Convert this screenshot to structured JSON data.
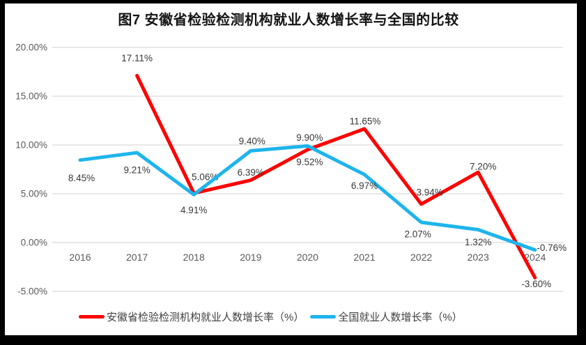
{
  "chart": {
    "title": "图7 安徽省检验检测机构就业人数增长率与全国的比较"
  },
  "chart_data": {
    "type": "line",
    "title": "图7 安徽省检验检测机构就业人数增长率与全国的比较",
    "categories": [
      "2016",
      "2017",
      "2018",
      "2019",
      "2020",
      "2021",
      "2022",
      "2023",
      "2024"
    ],
    "y_axis": {
      "min": -5,
      "max": 20,
      "step": 5,
      "ticks": [
        {
          "value": 20,
          "label": "20.00%"
        },
        {
          "value": 15,
          "label": "15.00%"
        },
        {
          "value": 10,
          "label": "10.00%"
        },
        {
          "value": 5,
          "label": "5.00%"
        },
        {
          "value": 0,
          "label": "0.00%"
        },
        {
          "value": -5,
          "label": "-5.00%"
        }
      ]
    },
    "grid": true,
    "legend_position": "bottom",
    "series": [
      {
        "name": "安徽省检验检测机构就业人数增长率（%）",
        "color": "#FF0000",
        "values": [
          null,
          17.11,
          5.06,
          6.39,
          9.52,
          11.65,
          3.94,
          7.2,
          -3.6
        ],
        "labels": [
          null,
          "17.11%",
          "5.06%",
          "6.39%",
          "9.52%",
          "11.65%",
          "3.94%",
          "7.20%",
          "-3.60%"
        ],
        "label_offsets": [
          null,
          [
            0,
            -25
          ],
          [
            16,
            -23
          ],
          [
            0,
            -11
          ],
          [
            3,
            18
          ],
          [
            1,
            -11
          ],
          [
            12,
            -17
          ],
          [
            7,
            -8
          ],
          [
            2,
            9
          ]
        ]
      },
      {
        "name": "全国就业人数增长率（%）",
        "color": "#1FB4EC",
        "values": [
          8.45,
          9.21,
          4.91,
          9.4,
          9.9,
          6.97,
          2.07,
          1.32,
          -0.76
        ],
        "labels": [
          "8.45%",
          "9.21%",
          "4.91%",
          "9.40%",
          "9.90%",
          "6.97%",
          "2.07%",
          "1.32%",
          "-0.76%"
        ],
        "label_offsets": [
          [
            2,
            26
          ],
          [
            0,
            25
          ],
          [
            0,
            22
          ],
          [
            2,
            -14
          ],
          [
            3,
            -12
          ],
          [
            0,
            16
          ],
          [
            -5,
            17
          ],
          [
            0,
            18
          ],
          [
            24,
            -3
          ]
        ]
      }
    ]
  }
}
